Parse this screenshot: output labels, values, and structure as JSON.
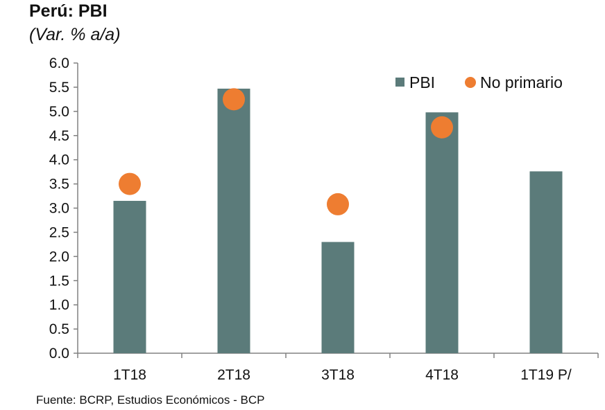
{
  "title": "Perú: PBI",
  "subtitle": "(Var. % a/a)",
  "source": "Fuente: BCRP, Estudios Económicos - BCP",
  "colors": {
    "bar": "#5b7b7a",
    "dot": "#ee7d31",
    "axis": "#808080"
  },
  "chart_data": {
    "type": "bar",
    "categories": [
      "1T18",
      "2T18",
      "3T18",
      "4T18",
      "1T19 P/"
    ],
    "series": [
      {
        "name": "PBI",
        "type": "bar",
        "values": [
          3.15,
          5.47,
          2.3,
          4.98,
          3.76
        ]
      },
      {
        "name": "No primario",
        "type": "scatter",
        "values": [
          3.5,
          5.25,
          3.08,
          4.67,
          null
        ]
      }
    ],
    "ylim": [
      0,
      6
    ],
    "yticks": [
      "0.0",
      "0.5",
      "1.0",
      "1.5",
      "2.0",
      "2.5",
      "3.0",
      "3.5",
      "4.0",
      "4.5",
      "5.0",
      "5.5",
      "6.0"
    ],
    "legend": "top-right",
    "grid": false
  }
}
